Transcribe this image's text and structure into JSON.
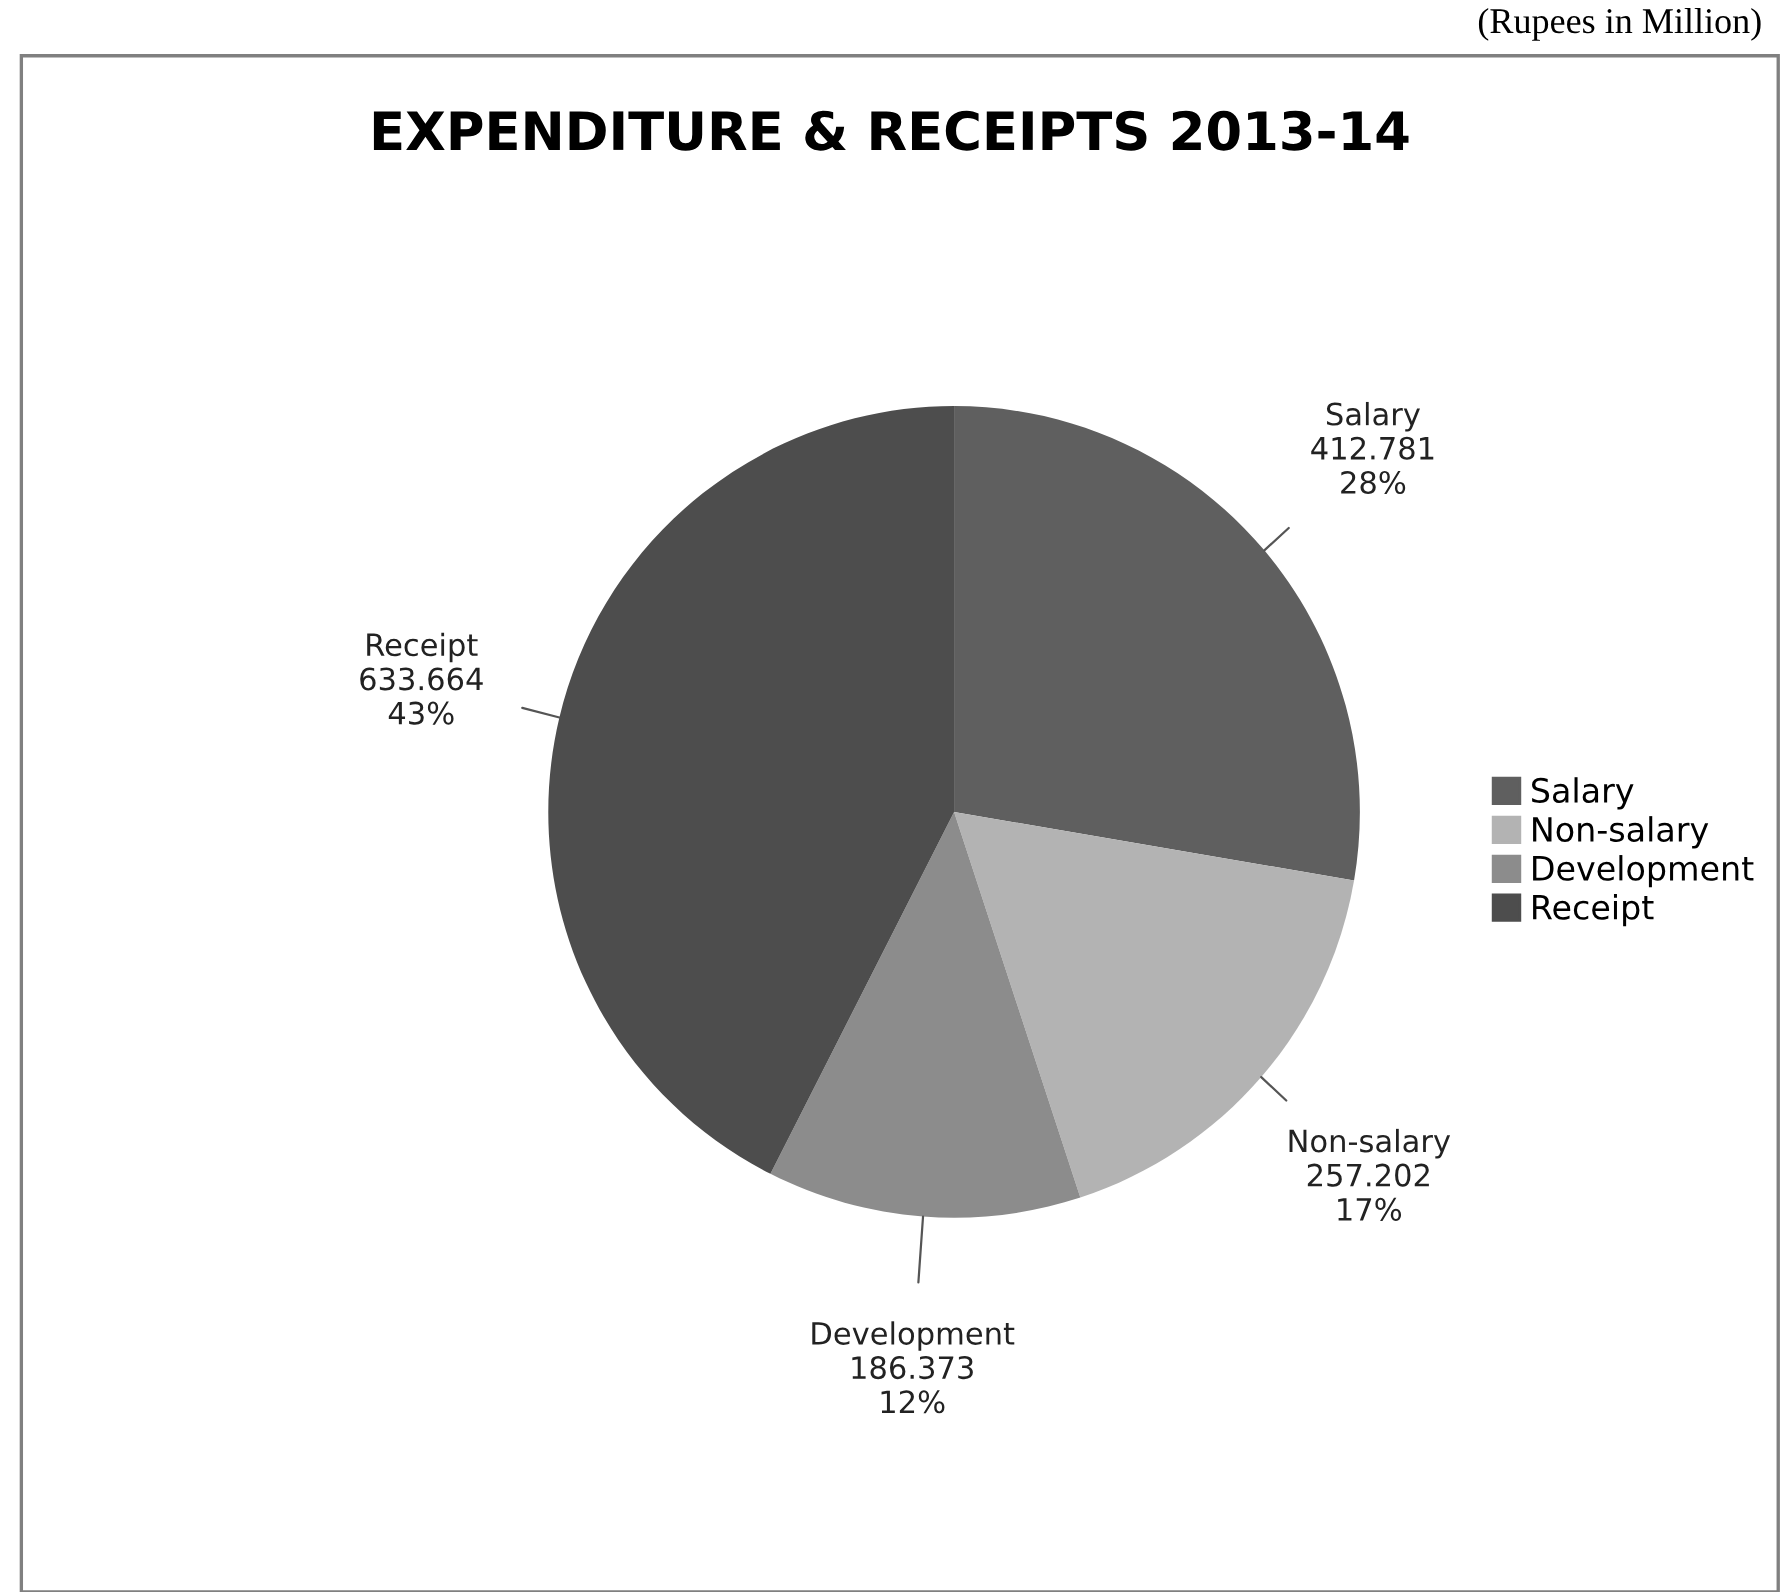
{
  "chart_data": {
    "type": "pie",
    "title": "EXPENDITURE & RECEIPTS 2013-14",
    "categories": [
      "Salary",
      "Non-salary",
      "Development",
      "Receipt"
    ],
    "values": [
      412.781,
      257.202,
      186.373,
      633.664
    ],
    "value_labels": [
      "412.781\n28%",
      "257.202\n17%",
      "186.373\n12%",
      "633.664\n43%"
    ],
    "colors": [
      "#5f5f5f",
      "#b3b3b3",
      "#8c8c8c",
      "#4d4d4d"
    ],
    "legend": "right",
    "annotations": [
      "(Rupees in Million)"
    ]
  }
}
